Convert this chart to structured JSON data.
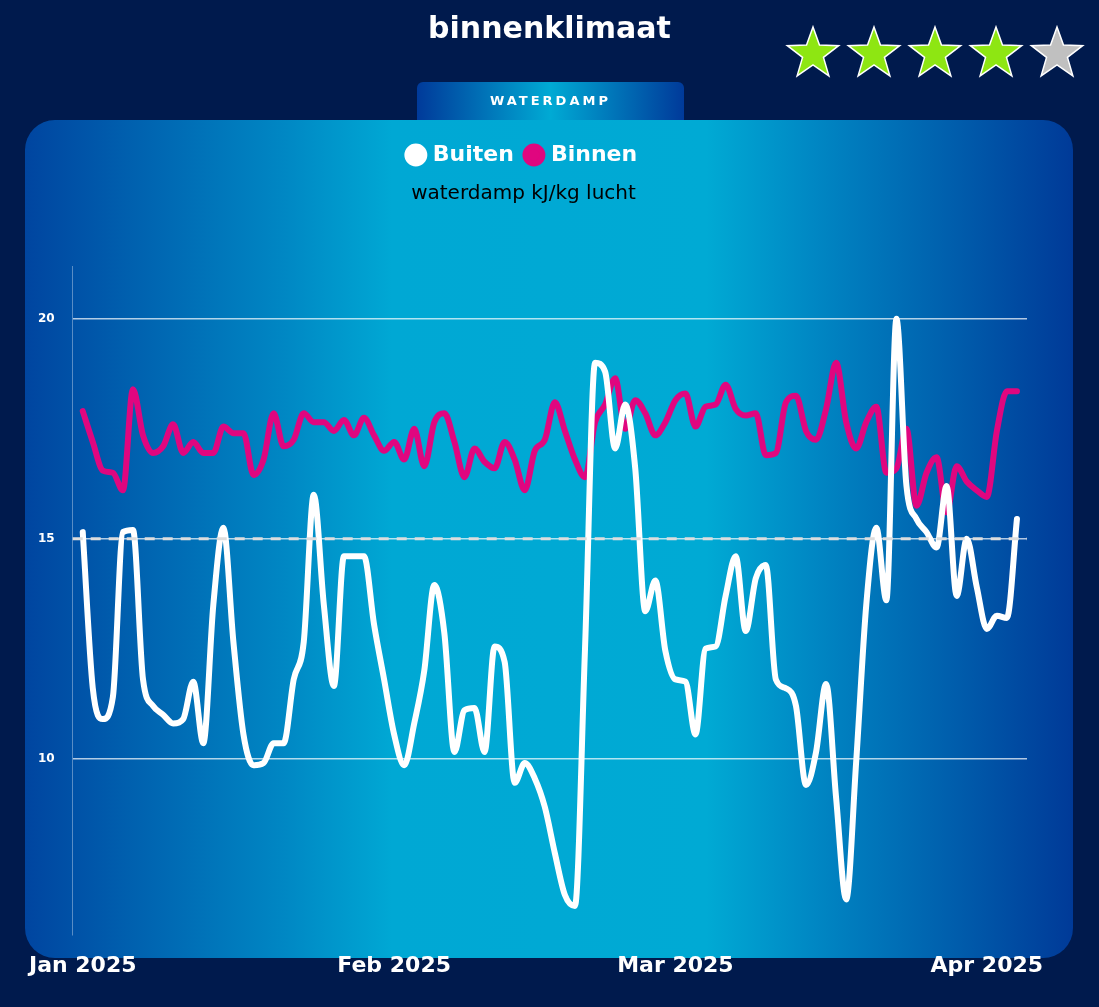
{
  "chart_data": {
    "type": "line",
    "title": "binnenklimaat",
    "subtitle": "WATERDAMP",
    "ylabel": "waterdamp kJ/kg lucht",
    "x": [
      "2025-01-01",
      "2025-01-02",
      "2025-01-03",
      "2025-01-04",
      "2025-01-05",
      "2025-01-06",
      "2025-01-07",
      "2025-01-08",
      "2025-01-09",
      "2025-01-10",
      "2025-01-11",
      "2025-01-12",
      "2025-01-13",
      "2025-01-14",
      "2025-01-15",
      "2025-01-16",
      "2025-01-17",
      "2025-01-18",
      "2025-01-19",
      "2025-01-20",
      "2025-01-21",
      "2025-01-22",
      "2025-01-23",
      "2025-01-24",
      "2025-01-25",
      "2025-01-26",
      "2025-01-27",
      "2025-01-28",
      "2025-01-29",
      "2025-01-30",
      "2025-01-31",
      "2025-02-01",
      "2025-02-02",
      "2025-02-03",
      "2025-02-04",
      "2025-02-05",
      "2025-02-06",
      "2025-02-07",
      "2025-02-08",
      "2025-02-09",
      "2025-02-10",
      "2025-02-11",
      "2025-02-12",
      "2025-02-13",
      "2025-02-14",
      "2025-02-15",
      "2025-02-16",
      "2025-02-17",
      "2025-02-18",
      "2025-02-19",
      "2025-02-20",
      "2025-02-21",
      "2025-02-22",
      "2025-02-23",
      "2025-02-24",
      "2025-02-25",
      "2025-02-26",
      "2025-02-27",
      "2025-02-28",
      "2025-03-01",
      "2025-03-02",
      "2025-03-03",
      "2025-03-04",
      "2025-03-05",
      "2025-03-06",
      "2025-03-07",
      "2025-03-08",
      "2025-03-09",
      "2025-03-10",
      "2025-03-11",
      "2025-03-12",
      "2025-03-13",
      "2025-03-14",
      "2025-03-15",
      "2025-03-16",
      "2025-03-17",
      "2025-03-18",
      "2025-03-19",
      "2025-03-20",
      "2025-03-21",
      "2025-03-22",
      "2025-03-23",
      "2025-03-24",
      "2025-03-25",
      "2025-03-26",
      "2025-03-27",
      "2025-03-28",
      "2025-03-29",
      "2025-03-30",
      "2025-03-31",
      "2025-04-01",
      "2025-04-02",
      "2025-04-03",
      "2025-04-04"
    ],
    "series": [
      {
        "name": "Buiten",
        "color": "#ffffff",
        "values": [
          15.15,
          11.6,
          10.9,
          11.4,
          15.15,
          15.2,
          11.8,
          11.2,
          11.0,
          10.8,
          10.9,
          11.75,
          10.35,
          13.5,
          15.25,
          12.65,
          10.55,
          9.85,
          9.9,
          10.35,
          10.35,
          11.8,
          12.65,
          16.0,
          13.5,
          11.65,
          14.6,
          14.6,
          14.6,
          13.05,
          11.8,
          10.55,
          9.85,
          10.8,
          12.0,
          13.95,
          12.85,
          10.15,
          11.1,
          11.15,
          10.15,
          12.55,
          12.2,
          9.45,
          9.9,
          9.55,
          8.9,
          7.85,
          6.9,
          6.65,
          12.5,
          19.0,
          18.8,
          17.05,
          18.05,
          16.6,
          13.35,
          14.05,
          12.45,
          11.8,
          11.75,
          10.55,
          12.5,
          12.55,
          13.7,
          14.6,
          12.9,
          14.1,
          14.4,
          11.8,
          11.6,
          11.2,
          9.4,
          10.15,
          11.7,
          9.1,
          6.8,
          9.95,
          13.5,
          15.25,
          13.6,
          20.0,
          16.2,
          15.45,
          15.15,
          14.8,
          16.2,
          13.7,
          15.0,
          13.9,
          12.95,
          13.25,
          13.2,
          15.45
        ]
      },
      {
        "name": "Binnen",
        "color": "#e0067f",
        "values": [
          17.9,
          17.2,
          16.55,
          16.5,
          16.1,
          18.4,
          17.35,
          16.95,
          17.1,
          17.6,
          16.95,
          17.2,
          16.95,
          16.95,
          17.55,
          17.4,
          17.4,
          16.45,
          16.8,
          17.85,
          17.1,
          17.25,
          17.85,
          17.65,
          17.65,
          17.45,
          17.7,
          17.35,
          17.75,
          17.35,
          17.0,
          17.2,
          16.8,
          17.5,
          16.65,
          17.65,
          17.85,
          17.2,
          16.4,
          17.05,
          16.75,
          16.6,
          17.2,
          16.8,
          16.1,
          17.0,
          17.25,
          18.1,
          17.45,
          16.8,
          16.4,
          17.65,
          18.05,
          18.65,
          17.5,
          18.15,
          17.85,
          17.35,
          17.65,
          18.15,
          18.3,
          17.55,
          18.0,
          18.05,
          18.5,
          17.95,
          17.8,
          17.85,
          16.9,
          16.95,
          18.1,
          18.25,
          17.45,
          17.25,
          17.95,
          19.0,
          17.65,
          17.05,
          17.65,
          18.0,
          16.5,
          16.6,
          17.5,
          15.75,
          16.5,
          16.85,
          15.6,
          16.65,
          16.3,
          16.1,
          15.95,
          17.45,
          18.35,
          18.35
        ]
      }
    ],
    "xlim": [
      "2024-12-31",
      "2025-04-05"
    ],
    "xticks": [
      {
        "value": "2025-01-01",
        "label": "Jan 2025"
      },
      {
        "value": "2025-02-01",
        "label": "Feb 2025"
      },
      {
        "value": "2025-03-01",
        "label": "Mar 2025"
      },
      {
        "value": "2025-04-01",
        "label": "Apr 2025"
      }
    ],
    "ylim": [
      6,
      21.2
    ],
    "yticks": [
      10,
      15,
      20
    ],
    "ref_lines": [
      {
        "axis": "y",
        "value": 15,
        "color": "#dddddd",
        "line_style": "dashed"
      }
    ],
    "grid": "y",
    "legend": "top"
  }
}
